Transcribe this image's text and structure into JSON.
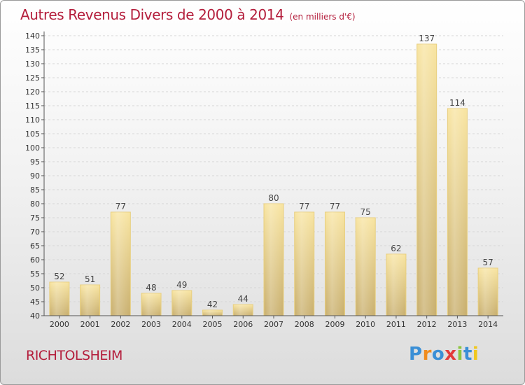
{
  "title": "Autres Revenus Divers de 2000 à 2014",
  "unit_note": "(en milliers d'€)",
  "commune": "RICHTOLSHEIM",
  "logo": {
    "letters": [
      "P",
      "r",
      "o",
      "x",
      "i",
      "t",
      "i"
    ],
    "colors": [
      "#3a8fd6",
      "#f08c1e",
      "#3a8fd6",
      "#e23a3a",
      "#8cc63f",
      "#3a8fd6",
      "#f0c81e"
    ]
  },
  "colors": {
    "title": "#b41e3c",
    "bar_light": "#f8e4a0",
    "bar_dark": "#c8ae6c",
    "axis": "#555555",
    "grid": "#d6d6d6"
  },
  "chart_data": {
    "type": "bar",
    "categories": [
      "2000",
      "2001",
      "2002",
      "2003",
      "2004",
      "2005",
      "2006",
      "2007",
      "2008",
      "2009",
      "2010",
      "2011",
      "2012",
      "2013",
      "2014"
    ],
    "values": [
      52,
      51,
      77,
      48,
      49,
      42,
      44,
      80,
      77,
      77,
      75,
      62,
      137,
      114,
      57
    ],
    "ylim": [
      40,
      140
    ],
    "ytick_step": 5,
    "grid": true,
    "data_labels": true
  }
}
